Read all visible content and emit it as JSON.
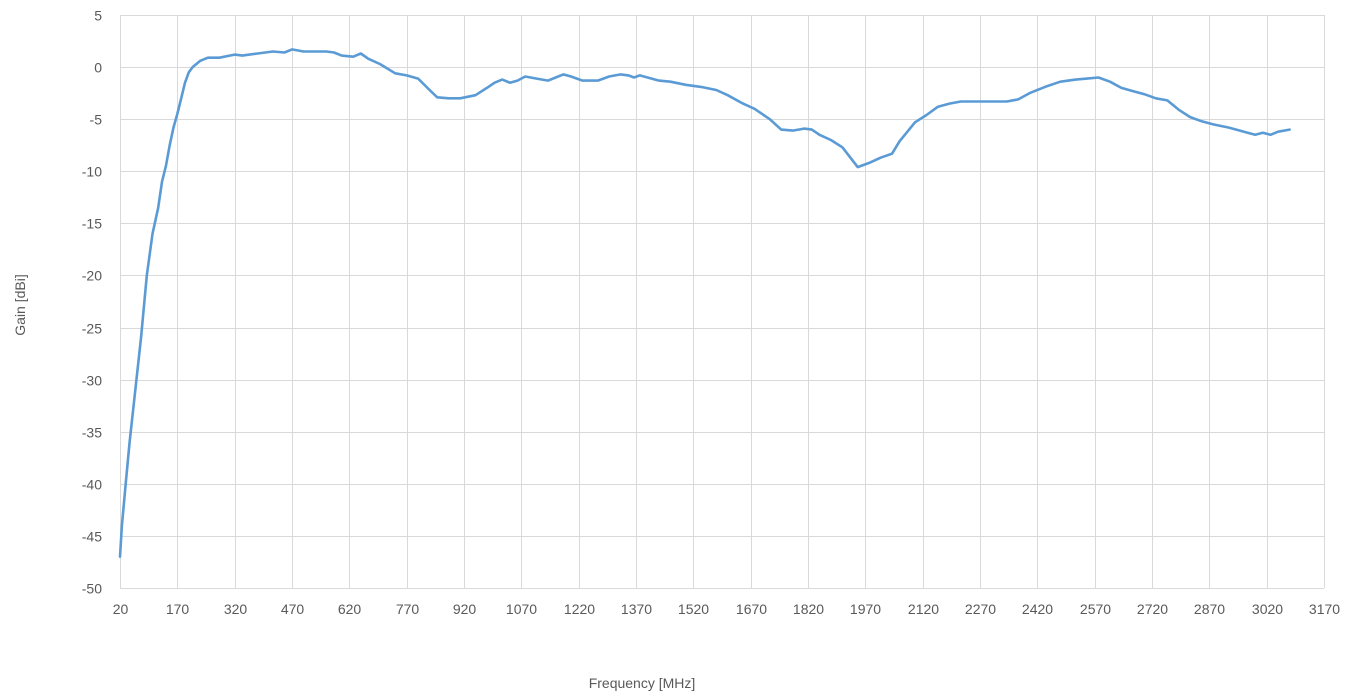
{
  "chart_data": {
    "type": "line",
    "title": "",
    "xlabel": "Frequency [MHz]",
    "ylabel": "Gain [dBi]",
    "xlim": [
      20,
      3170
    ],
    "ylim": [
      -50,
      5
    ],
    "x_ticks": [
      20,
      170,
      320,
      470,
      620,
      770,
      920,
      1070,
      1220,
      1370,
      1520,
      1670,
      1820,
      1970,
      2120,
      2270,
      2420,
      2570,
      2720,
      2870,
      3020,
      3170
    ],
    "y_ticks": [
      5,
      0,
      -5,
      -10,
      -15,
      -20,
      -25,
      -30,
      -35,
      -40,
      -45,
      -50
    ],
    "grid": true,
    "legend": "none",
    "series": [
      {
        "name": "",
        "color": "#5b9bd5",
        "points": [
          [
            20,
            -47
          ],
          [
            25,
            -44
          ],
          [
            35,
            -40
          ],
          [
            45,
            -36
          ],
          [
            60,
            -31
          ],
          [
            75,
            -26
          ],
          [
            90,
            -20
          ],
          [
            105,
            -16
          ],
          [
            120,
            -13.5
          ],
          [
            130,
            -11
          ],
          [
            140,
            -9.5
          ],
          [
            150,
            -7.5
          ],
          [
            160,
            -5.8
          ],
          [
            170,
            -4.5
          ],
          [
            180,
            -3
          ],
          [
            190,
            -1.5
          ],
          [
            200,
            -0.5
          ],
          [
            210,
            0
          ],
          [
            230,
            0.6
          ],
          [
            250,
            0.9
          ],
          [
            280,
            0.9
          ],
          [
            320,
            1.2
          ],
          [
            340,
            1.1
          ],
          [
            380,
            1.3
          ],
          [
            420,
            1.5
          ],
          [
            450,
            1.4
          ],
          [
            470,
            1.7
          ],
          [
            500,
            1.5
          ],
          [
            530,
            1.5
          ],
          [
            560,
            1.5
          ],
          [
            580,
            1.4
          ],
          [
            600,
            1.1
          ],
          [
            630,
            1.0
          ],
          [
            650,
            1.3
          ],
          [
            670,
            0.8
          ],
          [
            700,
            0.3
          ],
          [
            740,
            -0.6
          ],
          [
            770,
            -0.8
          ],
          [
            800,
            -1.1
          ],
          [
            830,
            -2.2
          ],
          [
            850,
            -2.9
          ],
          [
            880,
            -3.0
          ],
          [
            910,
            -3.0
          ],
          [
            950,
            -2.7
          ],
          [
            980,
            -2.0
          ],
          [
            1000,
            -1.5
          ],
          [
            1020,
            -1.2
          ],
          [
            1040,
            -1.5
          ],
          [
            1060,
            -1.3
          ],
          [
            1080,
            -0.9
          ],
          [
            1110,
            -1.1
          ],
          [
            1140,
            -1.3
          ],
          [
            1160,
            -1.0
          ],
          [
            1180,
            -0.7
          ],
          [
            1200,
            -0.9
          ],
          [
            1230,
            -1.3
          ],
          [
            1270,
            -1.3
          ],
          [
            1300,
            -0.9
          ],
          [
            1330,
            -0.7
          ],
          [
            1350,
            -0.8
          ],
          [
            1365,
            -1.0
          ],
          [
            1380,
            -0.8
          ],
          [
            1400,
            -1.0
          ],
          [
            1430,
            -1.3
          ],
          [
            1460,
            -1.4
          ],
          [
            1500,
            -1.7
          ],
          [
            1540,
            -1.9
          ],
          [
            1580,
            -2.2
          ],
          [
            1610,
            -2.7
          ],
          [
            1650,
            -3.5
          ],
          [
            1680,
            -4.0
          ],
          [
            1720,
            -5.0
          ],
          [
            1750,
            -6.0
          ],
          [
            1780,
            -6.1
          ],
          [
            1810,
            -5.9
          ],
          [
            1830,
            -6.0
          ],
          [
            1850,
            -6.5
          ],
          [
            1880,
            -7.0
          ],
          [
            1910,
            -7.7
          ],
          [
            1950,
            -9.6
          ],
          [
            1980,
            -9.2
          ],
          [
            2010,
            -8.7
          ],
          [
            2040,
            -8.3
          ],
          [
            2060,
            -7.1
          ],
          [
            2080,
            -6.2
          ],
          [
            2100,
            -5.3
          ],
          [
            2130,
            -4.6
          ],
          [
            2160,
            -3.8
          ],
          [
            2190,
            -3.5
          ],
          [
            2220,
            -3.3
          ],
          [
            2250,
            -3.3
          ],
          [
            2300,
            -3.3
          ],
          [
            2340,
            -3.3
          ],
          [
            2370,
            -3.1
          ],
          [
            2400,
            -2.5
          ],
          [
            2440,
            -1.9
          ],
          [
            2480,
            -1.4
          ],
          [
            2520,
            -1.2
          ],
          [
            2550,
            -1.1
          ],
          [
            2580,
            -1.0
          ],
          [
            2610,
            -1.4
          ],
          [
            2640,
            -2.0
          ],
          [
            2670,
            -2.3
          ],
          [
            2700,
            -2.6
          ],
          [
            2730,
            -3.0
          ],
          [
            2760,
            -3.2
          ],
          [
            2790,
            -4.1
          ],
          [
            2820,
            -4.8
          ],
          [
            2850,
            -5.2
          ],
          [
            2880,
            -5.5
          ],
          [
            2920,
            -5.8
          ],
          [
            2950,
            -6.1
          ],
          [
            2970,
            -6.3
          ],
          [
            2990,
            -6.5
          ],
          [
            3010,
            -6.3
          ],
          [
            3030,
            -6.5
          ],
          [
            3050,
            -6.2
          ],
          [
            3080,
            -6.0
          ]
        ]
      }
    ]
  }
}
